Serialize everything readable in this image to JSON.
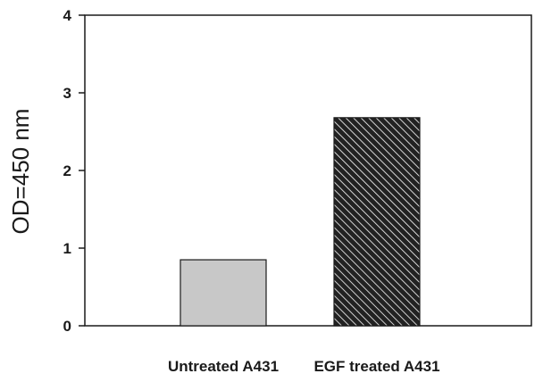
{
  "chart_data": {
    "type": "bar",
    "categories": [
      "Untreated A431",
      "EGF treated A431"
    ],
    "values": [
      0.85,
      2.68
    ],
    "ylabel": "OD=450 nm",
    "ylim": [
      0,
      4
    ],
    "yticks": [
      0,
      1,
      2,
      3,
      4
    ],
    "grid": false,
    "legend": "none",
    "bar_styles": [
      {
        "fill": "#c8c8c8",
        "pattern": "solid"
      },
      {
        "fill": "#222222",
        "pattern": "diagonal-hatch",
        "hatch_color": "#ffffff"
      }
    ],
    "axis_color": "#1a1a1a"
  }
}
